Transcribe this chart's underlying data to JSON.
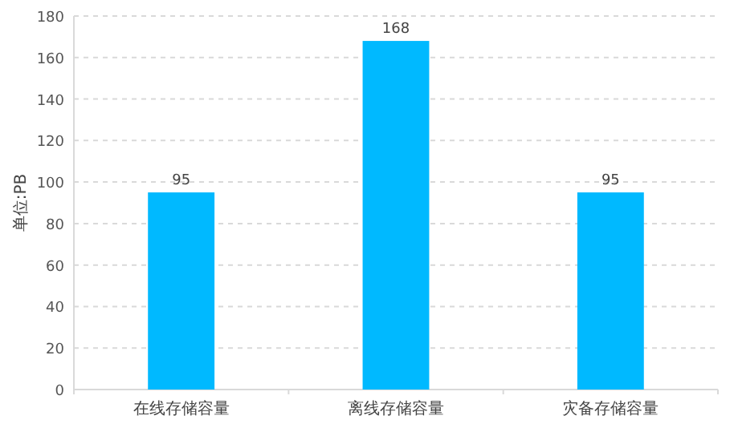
{
  "chart_data": {
    "type": "bar",
    "ylabel": "单位:PB",
    "categories": [
      "在线存储容量",
      "离线存储容量",
      "灾备存储容量"
    ],
    "values": [
      95,
      168,
      95
    ],
    "color": "#00b9ff",
    "ylim": [
      0,
      180
    ],
    "yticks": [
      0,
      20,
      40,
      60,
      80,
      100,
      120,
      140,
      160,
      180
    ],
    "grid": "y",
    "data_labels": true
  }
}
